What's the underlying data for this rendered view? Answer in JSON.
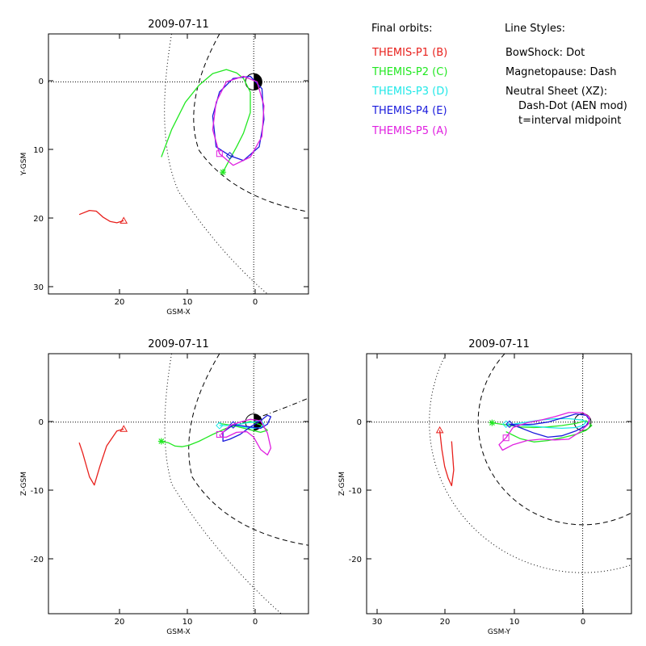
{
  "legend": {
    "orbits_header": "Final orbits:",
    "styles_header": "Line Styles:",
    "probes": [
      {
        "label": "THEMIS-P1 (B)",
        "color": "#e8201c"
      },
      {
        "label": "THEMIS-P2 (C)",
        "color": "#22e822"
      },
      {
        "label": "THEMIS-P3 (D)",
        "color": "#20e8e8"
      },
      {
        "label": "THEMIS-P4 (E)",
        "color": "#1a1adc"
      },
      {
        "label": "THEMIS-P5 (A)",
        "color": "#e020e0"
      }
    ],
    "styles": [
      "BowShock: Dot",
      "Magnetopause: Dash",
      "Neutral Sheet (XZ):",
      "Dash-Dot (AEN mod)",
      "t=interval midpoint"
    ]
  },
  "chart_data": [
    {
      "type": "line",
      "title": "2009-07-11",
      "xlabel": "GSM-X",
      "ylabel": "Y-GSM",
      "xlim": [
        30,
        -8
      ],
      "ylim": [
        -7,
        31
      ],
      "x_ticks": [
        "20",
        "10",
        "0"
      ],
      "y_ticks": [
        "0",
        "10",
        "20",
        "30"
      ],
      "series": [
        {
          "color": "#e8201c",
          "x": [
            19,
            20,
            21,
            22,
            23,
            24,
            25.5
          ],
          "y": [
            20.3,
            20.6,
            20.4,
            19.8,
            18.9,
            18.8,
            19.4
          ],
          "end_marker": "triangle"
        },
        {
          "color": "#22e822",
          "x": [
            4.5,
            3.5,
            2.5,
            1.5,
            0.5,
            0.5,
            1.5,
            2.5,
            4,
            6,
            8,
            10,
            12,
            13.5
          ],
          "y": [
            13.2,
            11.3,
            9.5,
            7.5,
            4.5,
            1.5,
            -0.5,
            -1.3,
            -1.8,
            -1.2,
            0.5,
            3,
            7,
            11
          ],
          "end_marker": "star"
        },
        {
          "color": "#1a1adc",
          "x": [
            3.5,
            5.5,
            6,
            5,
            3,
            0.5,
            -1.2,
            -1.5,
            -0.8,
            1.5,
            3.5
          ],
          "y": [
            10.8,
            9.5,
            5,
            1.5,
            -0.5,
            -0.8,
            1,
            5.5,
            9.5,
            11.5,
            10.8
          ],
          "end_marker": "diamond"
        },
        {
          "color": "#e020e0",
          "x": [
            5,
            6,
            5.5,
            4,
            1.5,
            -0.5,
            -1.5,
            -1.2,
            0.5,
            3,
            5
          ],
          "y": [
            10.5,
            7,
            3,
            0,
            -0.8,
            0,
            3.5,
            8,
            11,
            12.2,
            10.5
          ],
          "end_marker": "square"
        }
      ]
    },
    {
      "type": "line",
      "title": "2009-07-11",
      "xlabel": "GSM-X",
      "ylabel": "Z-GSM",
      "xlim": [
        30,
        -8
      ],
      "ylim": [
        -28,
        10
      ],
      "x_ticks": [
        "20",
        "10",
        "0"
      ],
      "y_ticks": [
        "0",
        "-10",
        "-20"
      ],
      "series": [
        {
          "color": "#e8201c",
          "x": [
            19,
            20,
            21.5,
            22.5,
            23.3,
            24,
            25,
            25.5
          ],
          "y": [
            -1,
            -1.3,
            -3.5,
            -6.5,
            -9.2,
            -8,
            -4.5,
            -3
          ],
          "end_marker": "triangle"
        },
        {
          "color": "#22e822",
          "x": [
            13.5,
            12.5,
            11.5,
            10.5,
            9.5,
            8,
            6,
            4,
            2,
            0.5,
            -1,
            -2,
            -1,
            1,
            3,
            5
          ],
          "y": [
            -2.8,
            -3,
            -3.5,
            -3.6,
            -3.4,
            -2.8,
            -1.8,
            -0.9,
            -0.3,
            0.1,
            -0.4,
            -1.2,
            -1.5,
            -1,
            -0.5,
            -0.2
          ],
          "end_marker": "star"
        },
        {
          "color": "#20e8e8",
          "x": [
            5,
            4,
            3,
            2,
            1,
            0,
            -1,
            -1.5,
            -1,
            0,
            1.5,
            3
          ],
          "y": [
            -0.5,
            -0.5,
            -0.4,
            -0.3,
            -0.1,
            0,
            0.3,
            -0.3,
            -0.8,
            -0.9,
            -0.7,
            -0.4
          ],
          "end_marker": "diamond"
        },
        {
          "color": "#1a1adc",
          "x": [
            3,
            4.5,
            4.5,
            3.5,
            2,
            0.5,
            -1,
            -2,
            -2.5,
            -2,
            -1,
            0.5,
            2,
            3
          ],
          "y": [
            -0.4,
            -1.5,
            -2.8,
            -2.5,
            -1.8,
            -0.7,
            0.2,
            1,
            0.8,
            -0.3,
            -0.9,
            -0.7,
            -0.5,
            -0.4
          ],
          "end_marker": "diamond"
        },
        {
          "color": "#e020e0",
          "x": [
            5,
            4.8,
            4,
            2.5,
            1,
            0,
            -1,
            -2,
            -2.5,
            -2,
            -1,
            0.5,
            2,
            3.5,
            4.8
          ],
          "y": [
            -1.8,
            -2.2,
            -2.2,
            -1.5,
            -1.4,
            -2.2,
            -4,
            -4.8,
            -3.8,
            -1.6,
            0.2,
            0.4,
            0,
            -0.5,
            -1.8
          ],
          "end_marker": "square"
        }
      ]
    },
    {
      "type": "line",
      "title": "2009-07-11",
      "xlabel": "GSM-Y",
      "ylabel": "Z-GSM",
      "xlim": [
        31,
        -7
      ],
      "ylim": [
        -28,
        10
      ],
      "x_ticks": [
        "30",
        "20",
        "10",
        "0"
      ],
      "y_ticks": [
        "0",
        "-10",
        "-20"
      ],
      "series": [
        {
          "color": "#e8201c",
          "x": [
            20.5,
            20.2,
            19.8,
            19.3,
            18.8,
            18.5,
            18.8
          ],
          "y": [
            -1.2,
            -4,
            -6.5,
            -8.2,
            -9.3,
            -7,
            -2.8
          ],
          "end_marker": "triangle"
        },
        {
          "color": "#22e822",
          "x": [
            13,
            11,
            9,
            7,
            5,
            3,
            1,
            -0.5,
            -1.3,
            -0.5,
            1,
            3,
            5,
            7,
            9,
            11
          ],
          "y": [
            -0.1,
            -0.4,
            -0.7,
            -0.8,
            -0.7,
            -0.5,
            -0.2,
            0.2,
            -0.5,
            -1.2,
            -1.8,
            -2.3,
            -2.7,
            -2.9,
            -2.4,
            -1.4
          ],
          "end_marker": "star"
        },
        {
          "color": "#20e8e8",
          "x": [
            11,
            9,
            7,
            5,
            3,
            1,
            0,
            -0.5,
            0,
            2,
            4,
            6,
            8,
            10
          ],
          "y": [
            -0.3,
            -0.4,
            -0.6,
            -0.8,
            -0.9,
            -0.8,
            -0.5,
            0,
            0.3,
            0.5,
            0.5,
            0.3,
            0,
            -0.3
          ],
          "end_marker": "diamond"
        },
        {
          "color": "#1a1adc",
          "x": [
            10.5,
            9,
            7,
            5,
            3,
            1,
            -0.5,
            -1,
            -0.5,
            1,
            3,
            5,
            7,
            9,
            10.5
          ],
          "y": [
            -0.3,
            -0.4,
            -0.3,
            0,
            0.6,
            1.2,
            1,
            0.3,
            -0.5,
            -1.3,
            -2,
            -2.2,
            -1.6,
            -0.8,
            -0.3
          ],
          "end_marker": "diamond"
        },
        {
          "color": "#e020e0",
          "x": [
            11,
            12,
            11.5,
            10,
            8,
            6,
            4,
            2,
            0.5,
            -0.8,
            -1,
            0,
            2,
            4,
            6,
            8,
            10,
            11
          ],
          "y": [
            -2.3,
            -3.3,
            -4.1,
            -3.3,
            -2.7,
            -2.5,
            -2.6,
            -2.5,
            -1.5,
            -0.3,
            0.7,
            1.4,
            1.4,
            0.8,
            0.3,
            -0.1,
            -0.8,
            -2.3
          ],
          "end_marker": "square"
        }
      ]
    }
  ]
}
